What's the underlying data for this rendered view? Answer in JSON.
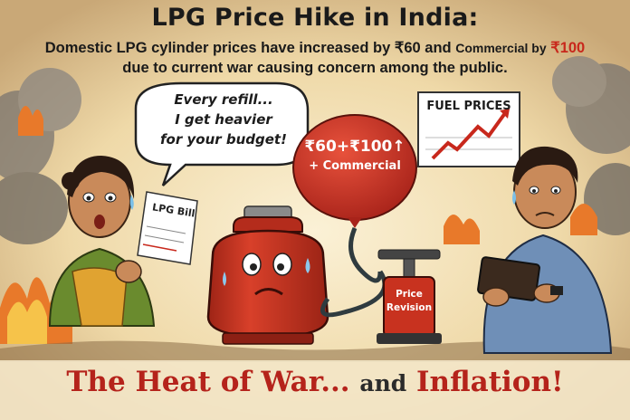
{
  "header": {
    "title": "LPG Price Hike in India:",
    "subtitle_line1_a": "Domestic LPG cylinder prices have increased by",
    "subtitle_domestic_amount": "₹60",
    "subtitle_line1_b": "and",
    "subtitle_line1_c": "Commercial by",
    "subtitle_commercial_amount": "₹100",
    "subtitle_line2": "due to current war causing concern among the public."
  },
  "speech_bubble": {
    "line1": "Every refill...",
    "line2": "I get heavier",
    "line3": "for your budget!"
  },
  "bill": {
    "label": "LPG Bill"
  },
  "balloon": {
    "line1": "₹60+₹100↑",
    "line2": "+ Commercial"
  },
  "chart_sign": {
    "label": "FUEL PRICES"
  },
  "pump": {
    "line1": "Price",
    "line2": "Revision"
  },
  "footer": {
    "part1": "The Heat of War...",
    "part2": "and",
    "part3": "Inflation!"
  },
  "colors": {
    "cylinder_red": "#c8321f",
    "headline_red": "#b5231b",
    "background": "#f3e6c8",
    "smoke": "#6b6b6b"
  }
}
